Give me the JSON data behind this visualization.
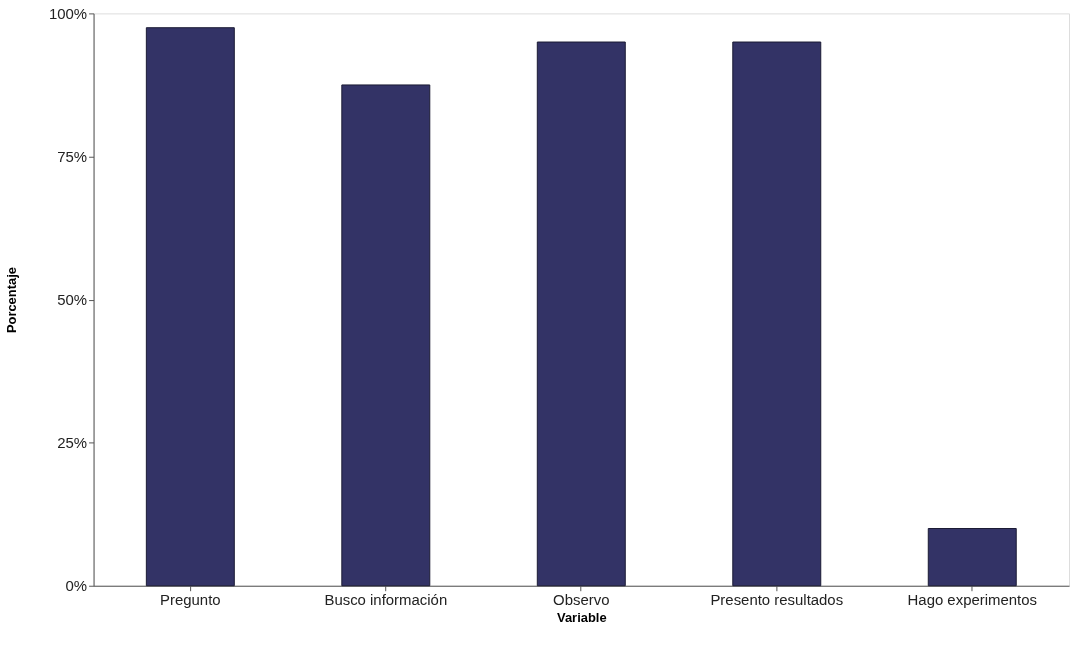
{
  "chart_data": {
    "type": "bar",
    "xlabel": "Variable",
    "ylabel": "Porcentaje",
    "categories": [
      "Pregunto",
      "Busco información",
      "Observo",
      "Presento resultados",
      "Hago experimentos"
    ],
    "values": [
      97.5,
      87.5,
      95,
      95,
      10
    ],
    "color": "#333366",
    "ylim": [
      0,
      100
    ],
    "yticks": [
      {
        "value": 0,
        "label": "0%"
      },
      {
        "value": 25,
        "label": "25%"
      },
      {
        "value": 50,
        "label": "50%"
      },
      {
        "value": 75,
        "label": "75%"
      },
      {
        "value": 100,
        "label": "100%"
      }
    ],
    "grid": false
  }
}
